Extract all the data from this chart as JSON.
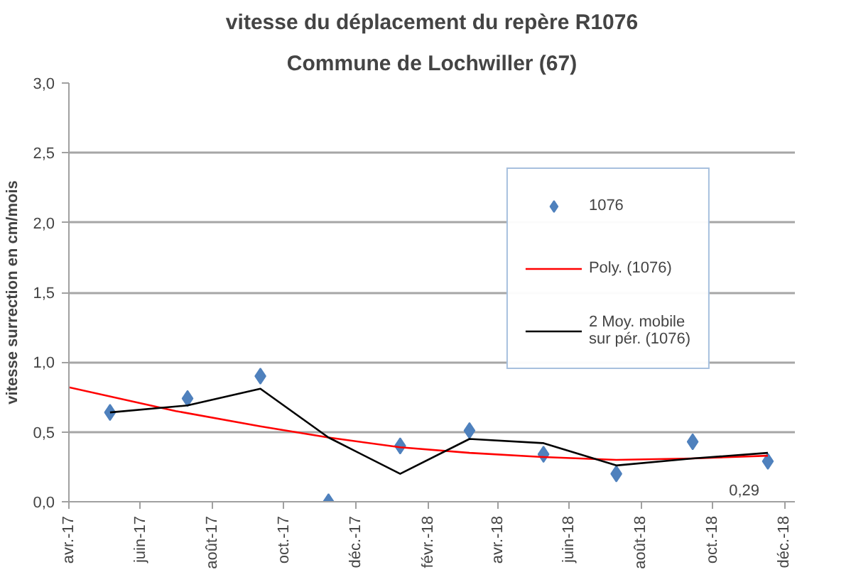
{
  "chart_data": {
    "type": "scatter",
    "title": "vitesse du déplacement du repère R1076",
    "subtitle": "Commune de Lochwiller (67)",
    "ylabel": "vitesse surrection en cm/mois",
    "x": [
      "2017-05-06",
      "2017-07-11",
      "2017-09-11",
      "2017-11-08",
      "2018-01-08",
      "2018-03-08",
      "2018-05-10",
      "2018-07-11",
      "2018-09-14",
      "2018-11-17"
    ],
    "series": [
      {
        "name": "1076",
        "color": "#4f81bd",
        "marker": "diamond",
        "values": [
          0.64,
          0.74,
          0.9,
          0.0,
          0.4,
          0.51,
          0.34,
          0.2,
          0.43,
          0.29
        ],
        "value_labels": [
          null,
          null,
          null,
          null,
          null,
          null,
          null,
          null,
          null,
          "0,29"
        ]
      },
      {
        "name": "Poly. (1076)",
        "type": "line",
        "color": "#ff0000",
        "x": [
          "2017-04-01",
          "2017-07-01",
          "2017-09-11",
          "2017-11-08",
          "2018-01-08",
          "2018-03-08",
          "2018-05-10",
          "2018-07-11",
          "2018-09-14",
          "2018-11-17"
        ],
        "values": [
          0.82,
          0.65,
          0.54,
          0.46,
          0.39,
          0.35,
          0.32,
          0.3,
          0.31,
          0.33
        ]
      },
      {
        "name": "2 Moy. mobile\nsur pér. (1076)",
        "type": "line",
        "color": "#000000",
        "values": [
          0.64,
          0.69,
          0.81,
          0.46,
          0.2,
          0.45,
          0.42,
          0.26,
          0.31,
          0.35
        ]
      }
    ],
    "xlim": [
      "2017-04-01",
      "2018-12-10"
    ],
    "xticks": [
      {
        "value": "2017-04-01",
        "label": "avr.-17"
      },
      {
        "value": "2017-06-01",
        "label": "juin-17"
      },
      {
        "value": "2017-08-01",
        "label": "août-17"
      },
      {
        "value": "2017-10-01",
        "label": "oct.-17"
      },
      {
        "value": "2017-12-01",
        "label": "déc.-17"
      },
      {
        "value": "2018-02-01",
        "label": "févr.-18"
      },
      {
        "value": "2018-04-01",
        "label": "avr.-18"
      },
      {
        "value": "2018-06-01",
        "label": "juin-18"
      },
      {
        "value": "2018-08-01",
        "label": "août-18"
      },
      {
        "value": "2018-10-01",
        "label": "oct.-18"
      },
      {
        "value": "2018-12-01",
        "label": "déc.-18"
      }
    ],
    "ylim": [
      0,
      3
    ],
    "yticks": [
      {
        "value": 0,
        "label": "0,0"
      },
      {
        "value": 0.5,
        "label": "0,5"
      },
      {
        "value": 1,
        "label": "1,0"
      },
      {
        "value": 1.5,
        "label": "1,5"
      },
      {
        "value": 2,
        "label": "2,0"
      },
      {
        "value": 2.5,
        "label": "2,5"
      },
      {
        "value": 3,
        "label": "3,0"
      }
    ],
    "grid": "y",
    "legend": "top right"
  }
}
